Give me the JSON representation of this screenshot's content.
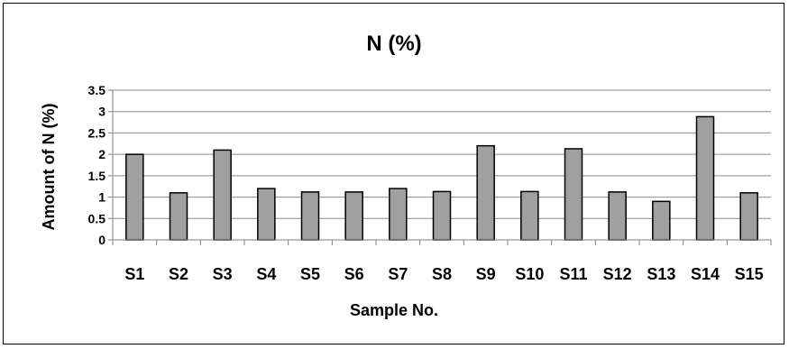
{
  "chart_data": {
    "type": "bar",
    "title": "N (%)",
    "xlabel": "Sample No.",
    "ylabel": "Amount of N (%)",
    "categories": [
      "S1",
      "S2",
      "S3",
      "S4",
      "S5",
      "S6",
      "S7",
      "S8",
      "S9",
      "S10",
      "S11",
      "S12",
      "S13",
      "S14",
      "S15"
    ],
    "values": [
      2.0,
      1.1,
      2.1,
      1.2,
      1.12,
      1.12,
      1.2,
      1.13,
      2.2,
      1.13,
      2.13,
      1.12,
      0.9,
      2.88,
      1.1
    ],
    "ylim": [
      0,
      3.5
    ],
    "yticks": [
      "0",
      "0.5",
      "1",
      "1.5",
      "2",
      "2.5",
      "3",
      "3.5"
    ],
    "grid": true,
    "legend": "none",
    "colors": {
      "bar": "#a0a0a0",
      "bar_edge": "#000000",
      "grid": "#8c8c8c",
      "axis": "#7f7f7f"
    }
  }
}
